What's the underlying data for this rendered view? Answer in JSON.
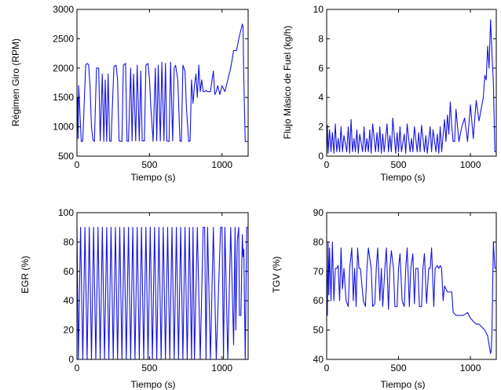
{
  "figure": {
    "line_color": "#1414e0",
    "frame_color": "#000000",
    "background": "#ffffff"
  },
  "chart_data": [
    {
      "type": "line",
      "xlabel": "Tiempo (s)",
      "ylabel": "Régimen Giro (RPM)",
      "xlim": [
        0,
        1180
      ],
      "ylim": [
        500,
        3000
      ],
      "xticks": [
        0,
        500,
        1000
      ],
      "yticks": [
        500,
        1000,
        1500,
        2000,
        2500,
        3000
      ],
      "grid": false,
      "x": [
        0,
        5,
        8,
        12,
        30,
        40,
        60,
        70,
        80,
        90,
        100,
        110,
        120,
        135,
        150,
        160,
        175,
        185,
        195,
        205,
        215,
        225,
        235,
        255,
        270,
        280,
        290,
        310,
        320,
        335,
        345,
        355,
        370,
        380,
        390,
        405,
        415,
        430,
        440,
        450,
        465,
        475,
        490,
        500,
        510,
        525,
        540,
        550,
        560,
        575,
        585,
        600,
        610,
        620,
        635,
        645,
        660,
        670,
        680,
        695,
        710,
        720,
        730,
        745,
        755,
        770,
        780,
        790,
        800,
        810,
        820,
        830,
        840,
        850,
        860,
        870,
        880,
        890,
        900,
        920,
        940,
        950,
        960,
        970,
        985,
        1000,
        1020,
        1040,
        1060,
        1080,
        1100,
        1120,
        1135,
        1140,
        1145,
        1150,
        1160,
        1180
      ],
      "values": [
        750,
        1500,
        800,
        1700,
        750,
        760,
        2050,
        2080,
        2060,
        1700,
        1000,
        780,
        750,
        2000,
        2000,
        760,
        1900,
        750,
        1800,
        750,
        1900,
        760,
        750,
        2030,
        2050,
        1800,
        760,
        750,
        2050,
        2080,
        760,
        750,
        2000,
        760,
        1900,
        760,
        2050,
        760,
        1950,
        760,
        760,
        2050,
        2080,
        1800,
        1300,
        750,
        2000,
        760,
        2050,
        760,
        2100,
        760,
        2080,
        760,
        750,
        2100,
        760,
        2000,
        2050,
        1800,
        760,
        750,
        2050,
        1950,
        1300,
        750,
        760,
        1800,
        1400,
        1700,
        1900,
        1500,
        2050,
        1600,
        1800,
        1600,
        1600,
        1620,
        1600,
        1600,
        1950,
        1550,
        1600,
        1700,
        1550,
        1700,
        1600,
        1800,
        2000,
        2300,
        2300,
        2550,
        2700,
        2750,
        2700,
        1800,
        750,
        750
      ]
    },
    {
      "type": "line",
      "xlabel": "Tiempo (s)",
      "ylabel": "Flujo Másico de Fuel (kg/h)",
      "xlim": [
        0,
        1180
      ],
      "ylim": [
        0,
        10
      ],
      "xticks": [
        0,
        500,
        1000
      ],
      "yticks": [
        0,
        2,
        4,
        6,
        8,
        10
      ],
      "grid": false,
      "x": [
        0,
        5,
        10,
        20,
        30,
        40,
        50,
        60,
        70,
        80,
        90,
        100,
        110,
        120,
        140,
        150,
        160,
        170,
        180,
        190,
        200,
        210,
        220,
        230,
        250,
        260,
        270,
        280,
        290,
        300,
        310,
        320,
        340,
        350,
        360,
        370,
        380,
        390,
        400,
        420,
        430,
        440,
        450,
        460,
        480,
        490,
        500,
        510,
        520,
        540,
        550,
        560,
        580,
        590,
        600,
        610,
        630,
        640,
        650,
        660,
        680,
        690,
        700,
        720,
        730,
        740,
        760,
        770,
        780,
        790,
        800,
        820,
        830,
        840,
        850,
        860,
        870,
        880,
        890,
        900,
        920,
        940,
        960,
        980,
        1000,
        1020,
        1040,
        1060,
        1080,
        1090,
        1100,
        1110,
        1120,
        1130,
        1140,
        1150,
        1160,
        1170,
        1180
      ],
      "values": [
        0.3,
        2.1,
        0.2,
        1.8,
        0.3,
        1.6,
        0.2,
        2.2,
        0.3,
        1.2,
        0.3,
        2.0,
        0.3,
        1.4,
        0.3,
        2.0,
        0.2,
        2.5,
        0.3,
        1.2,
        0.3,
        1.8,
        0.2,
        1.5,
        0.3,
        2.0,
        0.3,
        1.2,
        0.3,
        1.8,
        0.2,
        2.2,
        0.3,
        1.6,
        0.3,
        2.0,
        0.2,
        1.5,
        0.3,
        2.2,
        0.3,
        1.4,
        0.3,
        2.6,
        0.2,
        1.6,
        0.3,
        2.0,
        0.3,
        1.5,
        0.2,
        2.2,
        0.3,
        1.2,
        0.3,
        2.0,
        0.3,
        1.6,
        0.3,
        2.1,
        0.3,
        1.4,
        0.2,
        2.0,
        0.3,
        1.8,
        0.3,
        1.5,
        0.2,
        2.0,
        0.3,
        2.5,
        1.0,
        2.8,
        1.5,
        3.7,
        2.0,
        1.0,
        1.0,
        3.2,
        1.0,
        2.0,
        2.6,
        1.0,
        3.5,
        1.2,
        3.8,
        2.4,
        3.5,
        4.0,
        5.5,
        5.2,
        7.5,
        6.0,
        9.3,
        7.0,
        5.0,
        0.3,
        0.3
      ]
    },
    {
      "type": "line",
      "xlabel": "Tiempo (s)",
      "ylabel": "EGR (%)",
      "xlim": [
        0,
        1180
      ],
      "ylim": [
        0,
        100
      ],
      "xticks": [
        0,
        500,
        1000
      ],
      "yticks": [
        0,
        20,
        40,
        60,
        80,
        100
      ],
      "grid": false,
      "x": [
        0,
        10,
        25,
        40,
        55,
        70,
        85,
        100,
        115,
        130,
        145,
        160,
        175,
        190,
        205,
        220,
        235,
        250,
        265,
        280,
        295,
        310,
        325,
        340,
        355,
        370,
        385,
        400,
        415,
        430,
        445,
        460,
        475,
        490,
        505,
        520,
        535,
        550,
        565,
        580,
        595,
        610,
        625,
        640,
        655,
        670,
        685,
        700,
        715,
        730,
        745,
        760,
        775,
        790,
        800,
        810,
        830,
        850,
        870,
        880,
        890,
        900,
        920,
        940,
        960,
        990,
        1000,
        1010,
        1020,
        1040,
        1060,
        1080,
        1090,
        1095,
        1105,
        1115,
        1120,
        1130,
        1140,
        1145,
        1150,
        1160,
        1170,
        1180
      ],
      "values": [
        90,
        0,
        90,
        0,
        90,
        0,
        90,
        0,
        90,
        0,
        90,
        0,
        90,
        0,
        90,
        0,
        90,
        0,
        90,
        0,
        90,
        0,
        90,
        0,
        90,
        0,
        90,
        0,
        90,
        0,
        90,
        0,
        90,
        0,
        90,
        0,
        90,
        0,
        90,
        0,
        90,
        0,
        90,
        0,
        90,
        0,
        90,
        0,
        90,
        0,
        90,
        0,
        90,
        0,
        90,
        0,
        90,
        0,
        90,
        90,
        0,
        90,
        0,
        90,
        0,
        90,
        90,
        0,
        90,
        0,
        90,
        10,
        90,
        20,
        80,
        90,
        30,
        30,
        85,
        70,
        75,
        0,
        90,
        90
      ]
    },
    {
      "type": "line",
      "xlabel": "Tiempo (s)",
      "ylabel": "TGV (%)",
      "xlim": [
        0,
        1180
      ],
      "ylim": [
        40,
        90
      ],
      "xticks": [
        0,
        500,
        1000
      ],
      "yticks": [
        40,
        50,
        60,
        70,
        80,
        90
      ],
      "grid": false,
      "x": [
        0,
        5,
        10,
        15,
        20,
        30,
        40,
        50,
        60,
        70,
        80,
        90,
        100,
        110,
        120,
        135,
        150,
        160,
        175,
        185,
        195,
        205,
        215,
        225,
        235,
        255,
        270,
        280,
        290,
        310,
        320,
        335,
        345,
        355,
        370,
        380,
        390,
        405,
        415,
        430,
        440,
        450,
        465,
        475,
        490,
        500,
        510,
        525,
        540,
        550,
        560,
        575,
        585,
        600,
        610,
        620,
        635,
        645,
        660,
        670,
        680,
        695,
        710,
        720,
        730,
        745,
        755,
        770,
        780,
        790,
        800,
        810,
        820,
        840,
        860,
        870,
        880,
        900,
        920,
        950,
        980,
        1000,
        1020,
        1040,
        1060,
        1080,
        1100,
        1120,
        1130,
        1140,
        1145,
        1150,
        1160,
        1170,
        1180
      ],
      "values": [
        71,
        55,
        80,
        62,
        78,
        60,
        80,
        60,
        71,
        71,
        72,
        60,
        78,
        64,
        71,
        60,
        58,
        71,
        78,
        60,
        71,
        58,
        78,
        71,
        71,
        60,
        58,
        71,
        78,
        71,
        58,
        59,
        71,
        78,
        60,
        71,
        58,
        71,
        78,
        57,
        71,
        77,
        71,
        58,
        58,
        71,
        76,
        60,
        58,
        71,
        78,
        58,
        71,
        76,
        59,
        71,
        71,
        58,
        58,
        71,
        76,
        59,
        71,
        71,
        78,
        58,
        71,
        72,
        71,
        72,
        71,
        60,
        65,
        63,
        63,
        63,
        56,
        55,
        55,
        55,
        56,
        54,
        53,
        52,
        52,
        51,
        50,
        48,
        45,
        42,
        43,
        50,
        80,
        71,
        71
      ]
    }
  ]
}
